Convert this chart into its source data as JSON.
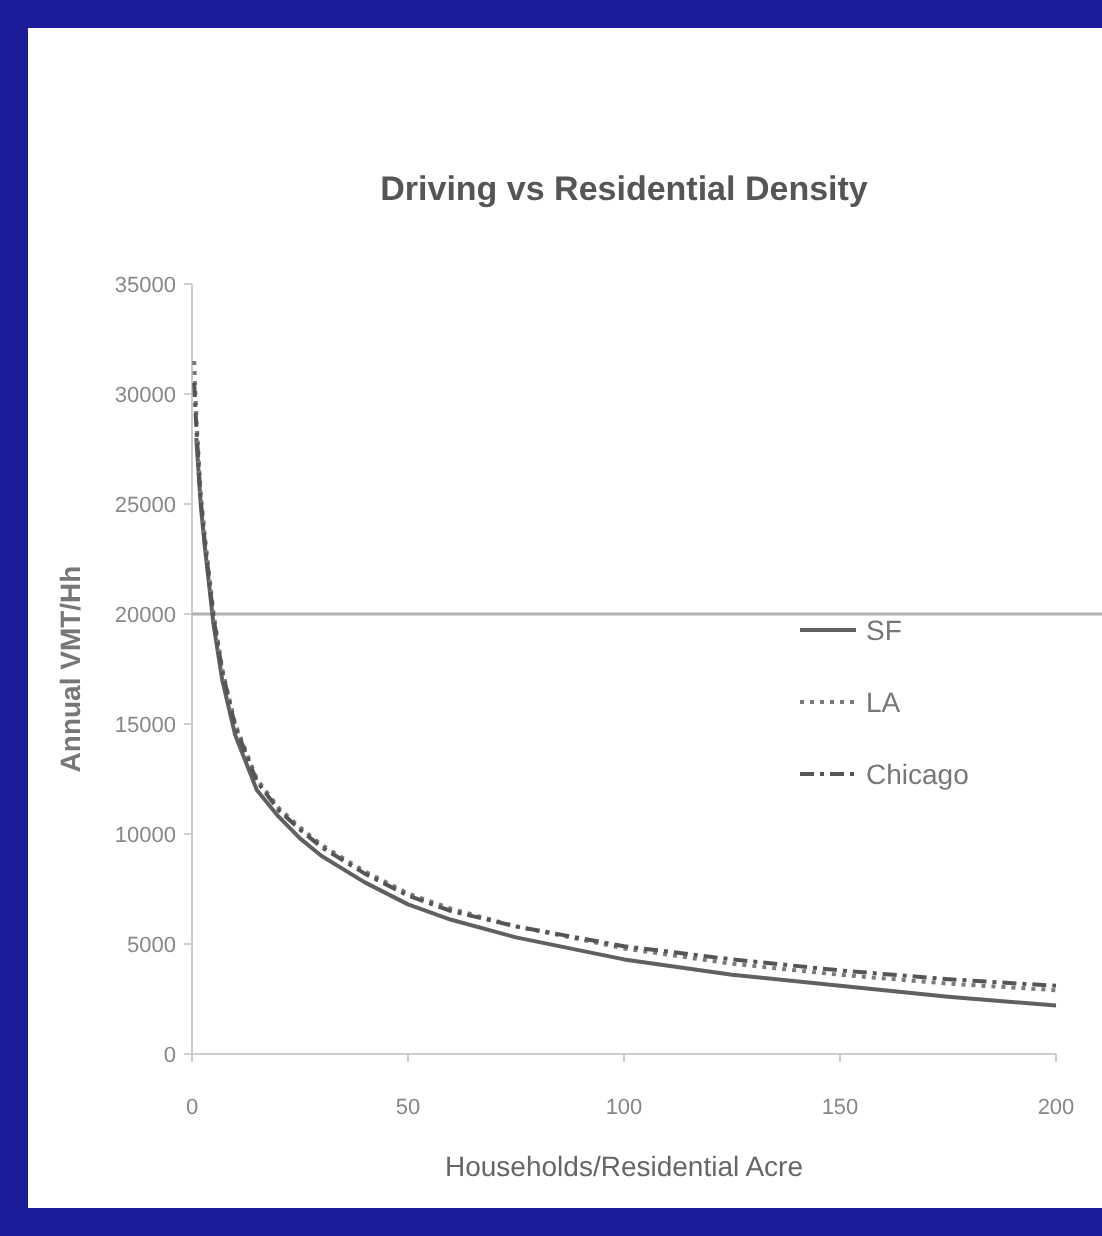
{
  "chart_data": {
    "type": "line",
    "title": "Driving vs Residential Density",
    "xlabel": "Households/Residential Acre",
    "ylabel": "Annual VMT/Hh",
    "xlim": [
      0,
      200
    ],
    "xticks": [
      0,
      50,
      100,
      150,
      200
    ],
    "ylim": [
      0,
      35000
    ],
    "yticks": [
      0,
      5000,
      10000,
      15000,
      20000,
      25000,
      30000,
      35000
    ],
    "grid": false,
    "legend": "right",
    "marker": "none",
    "ref_lines": [
      {
        "axis": "y",
        "value": 20000,
        "color": "#b0b0b0"
      }
    ],
    "series": [
      {
        "name": "SF",
        "color": "#606060",
        "line_style": "solid",
        "x": [
          1,
          2,
          3,
          5,
          7,
          10,
          15,
          20,
          25,
          30,
          40,
          50,
          60,
          75,
          100,
          125,
          150,
          175,
          200
        ],
        "values": [
          28000,
          25000,
          23000,
          19500,
          17000,
          14500,
          12000,
          10800,
          9800,
          9000,
          7800,
          6800,
          6100,
          5300,
          4300,
          3600,
          3100,
          2600,
          2200
        ]
      },
      {
        "name": "LA",
        "color": "#7a7a7a",
        "line_style": "dotted",
        "x": [
          0.5,
          1,
          2,
          3,
          5,
          7,
          10,
          15,
          20,
          25,
          30,
          40,
          50,
          60,
          75,
          100,
          125,
          150,
          175,
          200
        ],
        "values": [
          31500,
          29000,
          25500,
          23500,
          20000,
          17500,
          15000,
          12500,
          11200,
          10300,
          9500,
          8300,
          7300,
          6600,
          5800,
          4800,
          4100,
          3600,
          3200,
          2900
        ]
      },
      {
        "name": "Chicago",
        "color": "#555555",
        "line_style": "dashdot",
        "x": [
          0.5,
          1,
          2,
          3,
          5,
          7,
          10,
          15,
          20,
          25,
          30,
          40,
          50,
          60,
          75,
          100,
          125,
          150,
          175,
          200
        ],
        "values": [
          30500,
          28500,
          25200,
          23200,
          19800,
          17400,
          14900,
          12400,
          11100,
          10200,
          9400,
          8200,
          7200,
          6500,
          5800,
          4900,
          4300,
          3800,
          3400,
          3100
        ]
      }
    ]
  }
}
